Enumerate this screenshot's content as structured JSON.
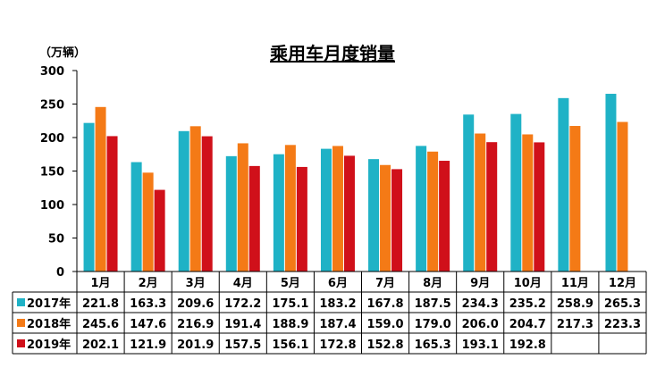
{
  "chart_data": {
    "type": "bar",
    "title": "乘用车月度销量",
    "ylabel": "（万辆）",
    "ylim": [
      0,
      300
    ],
    "yticks": [
      0,
      50,
      100,
      150,
      200,
      250,
      300
    ],
    "grid": false,
    "legend": "data table below chart",
    "categories": [
      "1月",
      "2月",
      "3月",
      "4月",
      "5月",
      "6月",
      "7月",
      "8月",
      "9月",
      "10月",
      "11月",
      "12月"
    ],
    "series": [
      {
        "name": "2017年",
        "color": "#1fb2c6",
        "values": [
          221.8,
          163.3,
          209.6,
          172.2,
          175.1,
          183.2,
          167.8,
          187.5,
          234.3,
          235.2,
          258.9,
          265.3
        ],
        "labels": [
          "221.8",
          "163.3",
          "209.6",
          "172.2",
          "175.1",
          "183.2",
          "167.8",
          "187.5",
          "234.3",
          "235.2",
          "258.9",
          "265.3"
        ]
      },
      {
        "name": "2018年",
        "color": "#f47a16",
        "values": [
          245.6,
          147.6,
          216.9,
          191.4,
          188.9,
          187.4,
          159.0,
          179.0,
          206.0,
          204.7,
          217.3,
          223.3
        ],
        "labels": [
          "245.6",
          "147.6",
          "216.9",
          "191.4",
          "188.9",
          "187.4",
          "159.0",
          "179.0",
          "206.0",
          "204.7",
          "217.3",
          "223.3"
        ]
      },
      {
        "name": "2019年",
        "color": "#d0101a",
        "values": [
          202.1,
          121.9,
          201.9,
          157.5,
          156.1,
          172.8,
          152.8,
          165.3,
          193.1,
          192.8,
          null,
          null
        ],
        "labels": [
          "202.1",
          "121.9",
          "201.9",
          "157.5",
          "156.1",
          "172.8",
          "152.8",
          "165.3",
          "193.1",
          "192.8",
          "",
          ""
        ]
      }
    ]
  }
}
